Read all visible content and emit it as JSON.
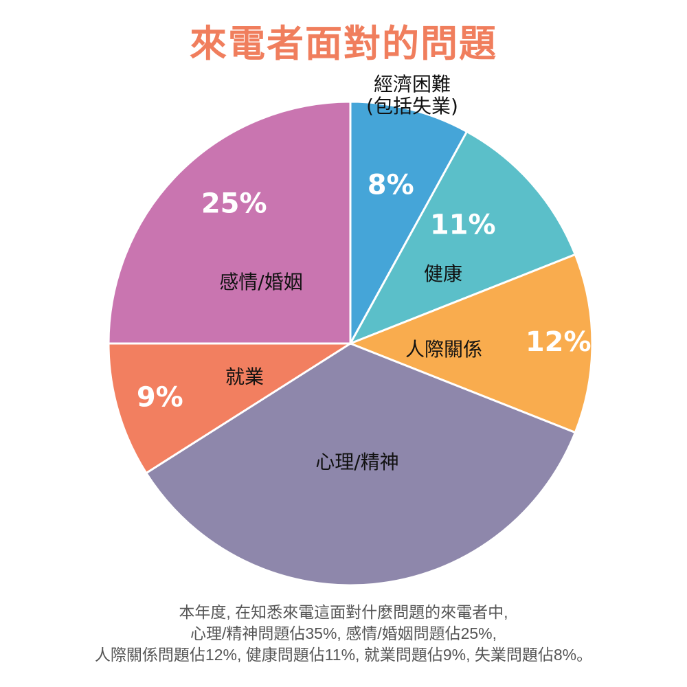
{
  "title": "來電者面對的問題",
  "chart_data": {
    "type": "pie",
    "title": "來電者面對的問題",
    "slices": [
      {
        "label": "經濟困難(包括失業)",
        "label_lines": [
          "經濟困難",
          "(包括失業)"
        ],
        "value": 8,
        "value_label": "8%",
        "color": "#45a5d8"
      },
      {
        "label": "健康",
        "label_lines": [
          "健康"
        ],
        "value": 11,
        "value_label": "11%",
        "color": "#5bbfc9"
      },
      {
        "label": "人際關係",
        "label_lines": [
          "人際關係"
        ],
        "value": 12,
        "value_label": "12%",
        "color": "#f9ac4e"
      },
      {
        "label": "心理/精神",
        "label_lines": [
          "心理/精神"
        ],
        "value": 35,
        "value_label": "",
        "color": "#8e87ab"
      },
      {
        "label": "就業",
        "label_lines": [
          "就業"
        ],
        "value": 9,
        "value_label": "9%",
        "color": "#f27f60"
      },
      {
        "label": "感情/婚姻",
        "label_lines": [
          "感情/婚姻"
        ],
        "value": 25,
        "value_label": "25%",
        "color": "#c975b0"
      }
    ]
  },
  "footer": {
    "line1": "本年度, 在知悉來電這面對什麼問題的來電者中,",
    "line2": "心理/精神問題佔35%, 感情/婚姻問題佔25%,",
    "line3": "人際關係問題佔12%, 健康問題佔11%, 就業問題佔9%, 失業問題佔8%。"
  }
}
